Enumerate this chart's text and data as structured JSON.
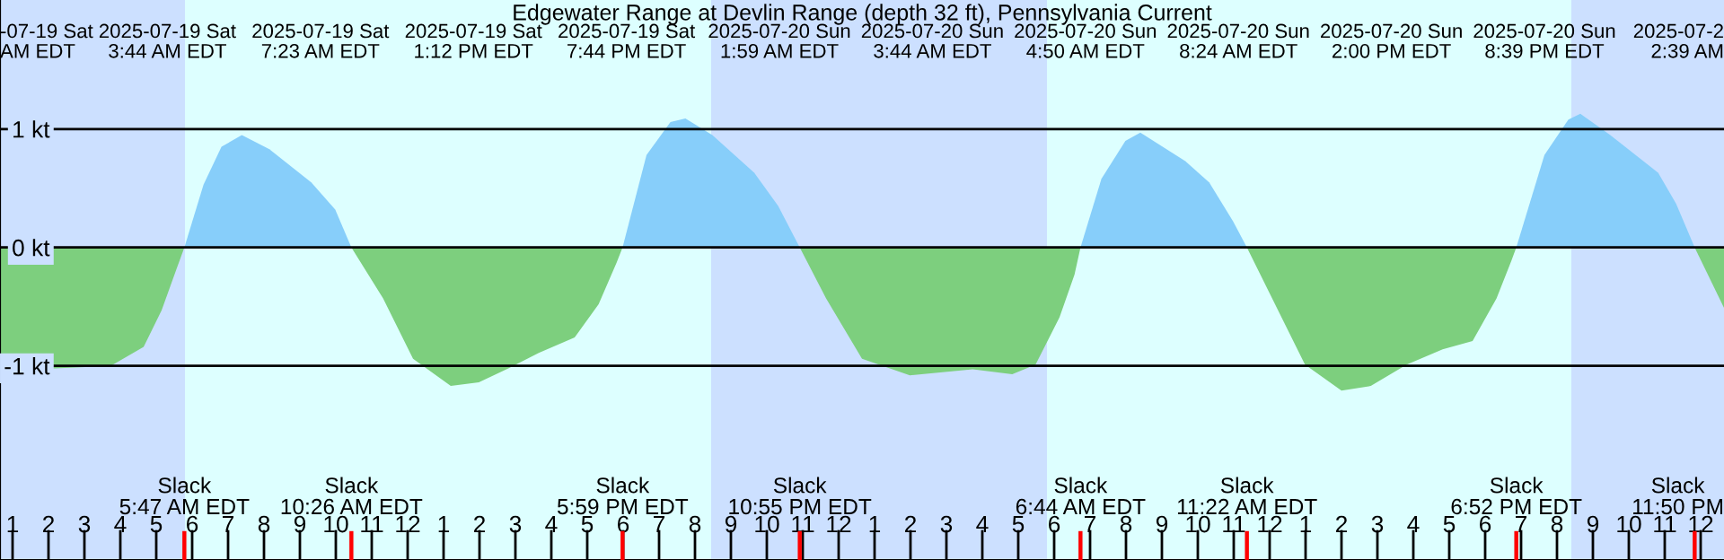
{
  "chart_data": {
    "type": "area",
    "title": "Edgewater Range at Devlin Range (depth 32 ft), Pennsylvania Current",
    "xlim": [
      "2025-07-19T00:39",
      "2025-07-21T00:39"
    ],
    "ylim": [
      -2.64,
      2.09
    ],
    "yticks": [
      {
        "value": -1,
        "label": "-1 kt"
      },
      {
        "value": 0,
        "label": "0 kt"
      },
      {
        "value": 1,
        "label": "1 kt"
      }
    ],
    "xticks": [
      {
        "value": "2025-07-19T01:00",
        "label": "1"
      },
      {
        "value": "2025-07-19T02:00",
        "label": "2"
      },
      {
        "value": "2025-07-19T03:00",
        "label": "3"
      },
      {
        "value": "2025-07-19T04:00",
        "label": "4"
      },
      {
        "value": "2025-07-19T05:00",
        "label": "5"
      },
      {
        "value": "2025-07-19T06:00",
        "label": "6"
      },
      {
        "value": "2025-07-19T07:00",
        "label": "7"
      },
      {
        "value": "2025-07-19T08:00",
        "label": "8"
      },
      {
        "value": "2025-07-19T09:00",
        "label": "9"
      },
      {
        "value": "2025-07-19T10:00",
        "label": "10"
      },
      {
        "value": "2025-07-19T11:00",
        "label": "11"
      },
      {
        "value": "2025-07-19T12:00",
        "label": "12"
      },
      {
        "value": "2025-07-19T13:00",
        "label": "1"
      },
      {
        "value": "2025-07-19T14:00",
        "label": "2"
      },
      {
        "value": "2025-07-19T15:00",
        "label": "3"
      },
      {
        "value": "2025-07-19T16:00",
        "label": "4"
      },
      {
        "value": "2025-07-19T17:00",
        "label": "5"
      },
      {
        "value": "2025-07-19T18:00",
        "label": "6"
      },
      {
        "value": "2025-07-19T19:00",
        "label": "7"
      },
      {
        "value": "2025-07-19T20:00",
        "label": "8"
      },
      {
        "value": "2025-07-19T21:00",
        "label": "9"
      },
      {
        "value": "2025-07-19T22:00",
        "label": "10"
      },
      {
        "value": "2025-07-19T23:00",
        "label": "11"
      },
      {
        "value": "2025-07-20T00:00",
        "label": "12"
      },
      {
        "value": "2025-07-20T01:00",
        "label": "1"
      },
      {
        "value": "2025-07-20T02:00",
        "label": "2"
      },
      {
        "value": "2025-07-20T03:00",
        "label": "3"
      },
      {
        "value": "2025-07-20T04:00",
        "label": "4"
      },
      {
        "value": "2025-07-20T05:00",
        "label": "5"
      },
      {
        "value": "2025-07-20T06:00",
        "label": "6"
      },
      {
        "value": "2025-07-20T07:00",
        "label": "7"
      },
      {
        "value": "2025-07-20T08:00",
        "label": "8"
      },
      {
        "value": "2025-07-20T09:00",
        "label": "9"
      },
      {
        "value": "2025-07-20T10:00",
        "label": "10"
      },
      {
        "value": "2025-07-20T11:00",
        "label": "11"
      },
      {
        "value": "2025-07-20T12:00",
        "label": "12"
      },
      {
        "value": "2025-07-20T13:00",
        "label": "1"
      },
      {
        "value": "2025-07-20T14:00",
        "label": "2"
      },
      {
        "value": "2025-07-20T15:00",
        "label": "3"
      },
      {
        "value": "2025-07-20T16:00",
        "label": "4"
      },
      {
        "value": "2025-07-20T17:00",
        "label": "5"
      },
      {
        "value": "2025-07-20T18:00",
        "label": "6"
      },
      {
        "value": "2025-07-20T19:00",
        "label": "7"
      },
      {
        "value": "2025-07-20T20:00",
        "label": "8"
      },
      {
        "value": "2025-07-20T21:00",
        "label": "9"
      },
      {
        "value": "2025-07-20T22:00",
        "label": "10"
      },
      {
        "value": "2025-07-20T23:00",
        "label": "11"
      },
      {
        "value": "2025-07-21T00:00",
        "label": "12"
      }
    ],
    "grid": "y",
    "bands": [
      {
        "axis": "x",
        "from": "2025-07-19T00:39",
        "to": "2025-07-19T05:48",
        "color": "#cce0ff"
      },
      {
        "axis": "x",
        "from": "2025-07-19T05:48",
        "to": "2025-07-19T20:27",
        "color": "#ddffff"
      },
      {
        "axis": "x",
        "from": "2025-07-19T20:27",
        "to": "2025-07-20T05:48",
        "color": "#cce0ff"
      },
      {
        "axis": "x",
        "from": "2025-07-20T05:48",
        "to": "2025-07-20T20:24",
        "color": "#ddffff"
      },
      {
        "axis": "x",
        "from": "2025-07-20T20:24",
        "to": "2025-07-21T00:39",
        "color": "#cce0ff"
      }
    ],
    "series": [
      {
        "color": "#87cefa",
        "x": [
          "2025-07-19T05:47",
          "2025-07-19T06:19",
          "2025-07-19T06:49",
          "2025-07-19T07:23",
          "2025-07-19T08:09",
          "2025-07-19T09:19",
          "2025-07-19T09:59",
          "2025-07-19T10:26",
          "2025-07-19T14:00",
          "2025-07-19T17:59",
          "2025-07-19T18:39",
          "2025-07-19T19:19",
          "2025-07-19T19:44",
          "2025-07-19T20:29",
          "2025-07-19T21:39",
          "2025-07-19T22:19",
          "2025-07-19T22:55",
          "2025-07-20T03:00",
          "2025-07-20T06:44",
          "2025-07-20T07:19",
          "2025-07-20T07:59",
          "2025-07-20T08:24",
          "2025-07-20T09:39",
          "2025-07-20T10:19",
          "2025-07-20T10:59",
          "2025-07-20T11:22",
          "2025-07-20T15:00",
          "2025-07-20T18:52",
          "2025-07-20T19:39",
          "2025-07-20T20:19",
          "2025-07-20T20:39",
          "2025-07-20T21:29",
          "2025-07-20T22:49",
          "2025-07-20T23:19",
          "2025-07-20T23:50"
        ],
        "values": [
          0,
          0.53,
          0.85,
          0.95,
          0.83,
          0.55,
          0.32,
          0,
          null,
          0,
          0.78,
          1.06,
          1.09,
          0.95,
          0.63,
          0.35,
          0,
          null,
          0,
          0.58,
          0.9,
          0.97,
          0.73,
          0.55,
          0.22,
          0,
          null,
          0,
          0.78,
          1.08,
          1.13,
          0.95,
          0.63,
          0.37,
          0
        ]
      },
      {
        "color": "#7dcf7e",
        "x": [
          "2025-07-19T00:39",
          "2025-07-19T02:19",
          "2025-07-19T03:44",
          "2025-07-19T04:39",
          "2025-07-19T05:09",
          "2025-07-19T05:34",
          "2025-07-19T05:47",
          "2025-07-19T08:00",
          "2025-07-19T10:26",
          "2025-07-19T11:19",
          "2025-07-19T12:09",
          "2025-07-19T13:12",
          "2025-07-19T13:59",
          "2025-07-19T14:49",
          "2025-07-19T15:39",
          "2025-07-19T16:39",
          "2025-07-19T17:19",
          "2025-07-19T17:49",
          "2025-07-19T17:59",
          "2025-07-19T20:00",
          "2025-07-19T22:55",
          "2025-07-19T23:39",
          "2025-07-20T00:39",
          "2025-07-20T01:59",
          "2025-07-20T03:44",
          "2025-07-20T04:50",
          "2025-07-20T05:29",
          "2025-07-20T06:09",
          "2025-07-20T06:34",
          "2025-07-20T06:44",
          "2025-07-20T09:00",
          "2025-07-20T11:22",
          "2025-07-20T12:09",
          "2025-07-20T12:59",
          "2025-07-20T14:00",
          "2025-07-20T14:49",
          "2025-07-20T15:49",
          "2025-07-20T16:49",
          "2025-07-20T17:39",
          "2025-07-20T18:19",
          "2025-07-20T18:44",
          "2025-07-20T18:52",
          "2025-07-20T21:00",
          "2025-07-20T23:50",
          "2025-07-21T00:39"
        ],
        "values": [
          -1.04,
          -1.02,
          -1.0,
          -0.84,
          -0.53,
          -0.18,
          0,
          null,
          0,
          -0.43,
          -0.94,
          -1.17,
          -1.14,
          -1.02,
          -0.89,
          -0.76,
          -0.48,
          -0.13,
          0,
          null,
          0,
          -0.43,
          -0.94,
          -1.08,
          -1.03,
          -1.07,
          -0.99,
          -0.59,
          -0.23,
          0,
          null,
          0,
          -0.48,
          -0.99,
          -1.21,
          -1.17,
          -0.99,
          -0.86,
          -0.79,
          -0.43,
          -0.11,
          0,
          null,
          0,
          -0.51
        ]
      }
    ],
    "annotations": [
      "-07-19 Sat\nAM EDT",
      "2025-07-19 Sat\n3:44 AM EDT",
      "2025-07-19 Sat\n7:23 AM EDT",
      "2025-07-19 Sat\n1:12 PM EDT",
      "2025-07-19 Sat\n7:44 PM EDT",
      "2025-07-20 Sun\n1:59 AM EDT",
      "2025-07-20 Sun\n3:44 AM EDT",
      "2025-07-20 Sun\n4:50 AM EDT",
      "2025-07-20 Sun\n8:24 AM EDT",
      "2025-07-20 Sun\n2:00 PM EDT",
      "2025-07-20 Sun\n8:39 PM EDT",
      "2025-07-2\n2:39 AM"
    ],
    "ref_lines": [
      {
        "axis": "x",
        "value": "2025-07-19T05:47",
        "label": "Slack\n5:47 AM EDT",
        "color": "#ff0000"
      },
      {
        "axis": "x",
        "value": "2025-07-19T10:26",
        "label": "Slack\n10:26 AM EDT",
        "color": "#ff0000"
      },
      {
        "axis": "x",
        "value": "2025-07-19T17:59",
        "label": "Slack\n5:59 PM EDT",
        "color": "#ff0000"
      },
      {
        "axis": "x",
        "value": "2025-07-19T22:55",
        "label": "Slack\n10:55 PM EDT",
        "color": "#ff0000"
      },
      {
        "axis": "x",
        "value": "2025-07-20T06:44",
        "label": "Slack\n6:44 AM EDT",
        "color": "#ff0000"
      },
      {
        "axis": "x",
        "value": "2025-07-20T11:22",
        "label": "Slack\n11:22 AM EDT",
        "color": "#ff0000"
      },
      {
        "axis": "x",
        "value": "2025-07-20T18:52",
        "label": "Slack\n6:52 PM EDT",
        "color": "#ff0000"
      },
      {
        "axis": "x",
        "value": "2025-07-20T23:50",
        "label": "Slack\n11:50 PM",
        "color": "#ff0000"
      }
    ]
  }
}
